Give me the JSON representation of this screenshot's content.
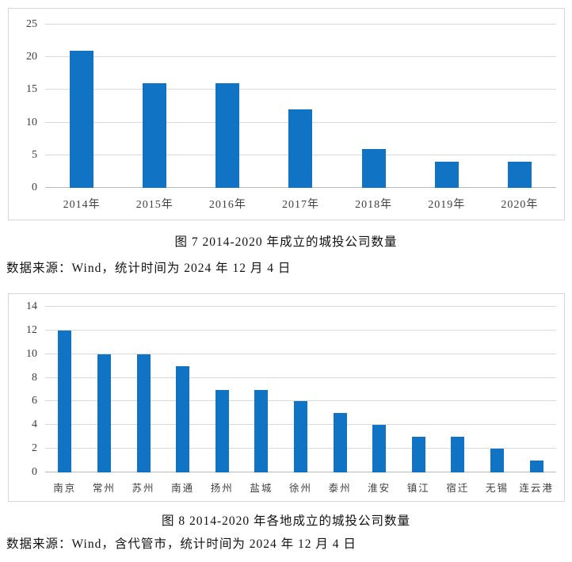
{
  "colors": {
    "bar": "#1173c4",
    "gridline": "#d9d9d9",
    "zero_axis": "#b9b9b9",
    "panel_border": "#d6d6d6",
    "tick_label": "#3f3f3f",
    "text": "#111111",
    "background": "#ffffff"
  },
  "figure7": {
    "caption": "图 7 2014-2020 年成立的城投公司数量",
    "source": "数据来源：Wind，统计时间为 2024 年 12 月 4 日"
  },
  "figure8": {
    "caption": "图 8 2014-2020 年各地成立的城投公司数量",
    "source": "数据来源：Wind，含代管市，统计时间为 2024 年 12 月 4 日"
  },
  "chart_data": [
    {
      "type": "bar",
      "title": "图 7 2014-2020 年成立的城投公司数量",
      "categories": [
        "2014年",
        "2015年",
        "2016年",
        "2017年",
        "2018年",
        "2019年",
        "2020年"
      ],
      "values": [
        21,
        16,
        16,
        12,
        6,
        4,
        4
      ],
      "xlabel": "",
      "ylabel": "",
      "ylim": [
        0,
        25
      ],
      "ytick_step": 5,
      "grid": true,
      "legend": "none",
      "bar_color": "#1173c4"
    },
    {
      "type": "bar",
      "title": "图 8 2014-2020 年各地成立的城投公司数量",
      "categories": [
        "南京",
        "常州",
        "苏州",
        "南通",
        "扬州",
        "盐城",
        "徐州",
        "泰州",
        "淮安",
        "镇江",
        "宿迁",
        "无锡",
        "连云港"
      ],
      "values": [
        12,
        10,
        10,
        9,
        7,
        7,
        6,
        5,
        4,
        3,
        3,
        2,
        1
      ],
      "xlabel": "",
      "ylabel": "",
      "ylim": [
        0,
        14
      ],
      "ytick_step": 2,
      "grid": true,
      "legend": "none",
      "bar_color": "#1173c4"
    }
  ]
}
